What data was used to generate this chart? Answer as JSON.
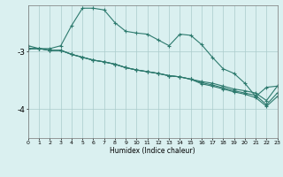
{
  "xlabel": "Humidex (Indice chaleur)",
  "bg_color": "#daf0f0",
  "grid_color": "#aacccc",
  "line_color": "#2d7a6e",
  "x_ticks": [
    0,
    1,
    2,
    3,
    4,
    5,
    6,
    7,
    8,
    9,
    10,
    11,
    12,
    13,
    14,
    15,
    16,
    17,
    18,
    19,
    20,
    21,
    22,
    23
  ],
  "xlim": [
    0,
    23
  ],
  "ylim": [
    -4.5,
    -2.2
  ],
  "yticks": [
    -4,
    -3
  ],
  "series": [
    [
      -2.9,
      -2.95,
      -2.95,
      -2.9,
      -2.55,
      -2.25,
      -2.25,
      -2.28,
      -2.5,
      -2.65,
      -2.68,
      -2.7,
      -2.8,
      -2.9,
      -2.7,
      -2.72,
      -2.88,
      -3.1,
      -3.3,
      -3.38,
      -3.55,
      -3.78,
      -3.62,
      -3.6
    ],
    [
      -2.95,
      -2.95,
      -2.98,
      -2.98,
      -3.05,
      -3.1,
      -3.15,
      -3.18,
      -3.22,
      -3.28,
      -3.32,
      -3.35,
      -3.38,
      -3.42,
      -3.44,
      -3.48,
      -3.52,
      -3.55,
      -3.6,
      -3.65,
      -3.68,
      -3.72,
      -3.85,
      -3.6
    ],
    [
      -2.95,
      -2.95,
      -2.98,
      -2.98,
      -3.05,
      -3.1,
      -3.15,
      -3.18,
      -3.22,
      -3.28,
      -3.32,
      -3.35,
      -3.38,
      -3.42,
      -3.44,
      -3.48,
      -3.54,
      -3.58,
      -3.63,
      -3.68,
      -3.72,
      -3.76,
      -3.92,
      -3.72
    ],
    [
      -2.95,
      -2.95,
      -2.98,
      -2.98,
      -3.05,
      -3.1,
      -3.15,
      -3.18,
      -3.22,
      -3.28,
      -3.32,
      -3.35,
      -3.38,
      -3.42,
      -3.44,
      -3.48,
      -3.56,
      -3.6,
      -3.65,
      -3.7,
      -3.74,
      -3.8,
      -3.95,
      -3.78
    ]
  ]
}
